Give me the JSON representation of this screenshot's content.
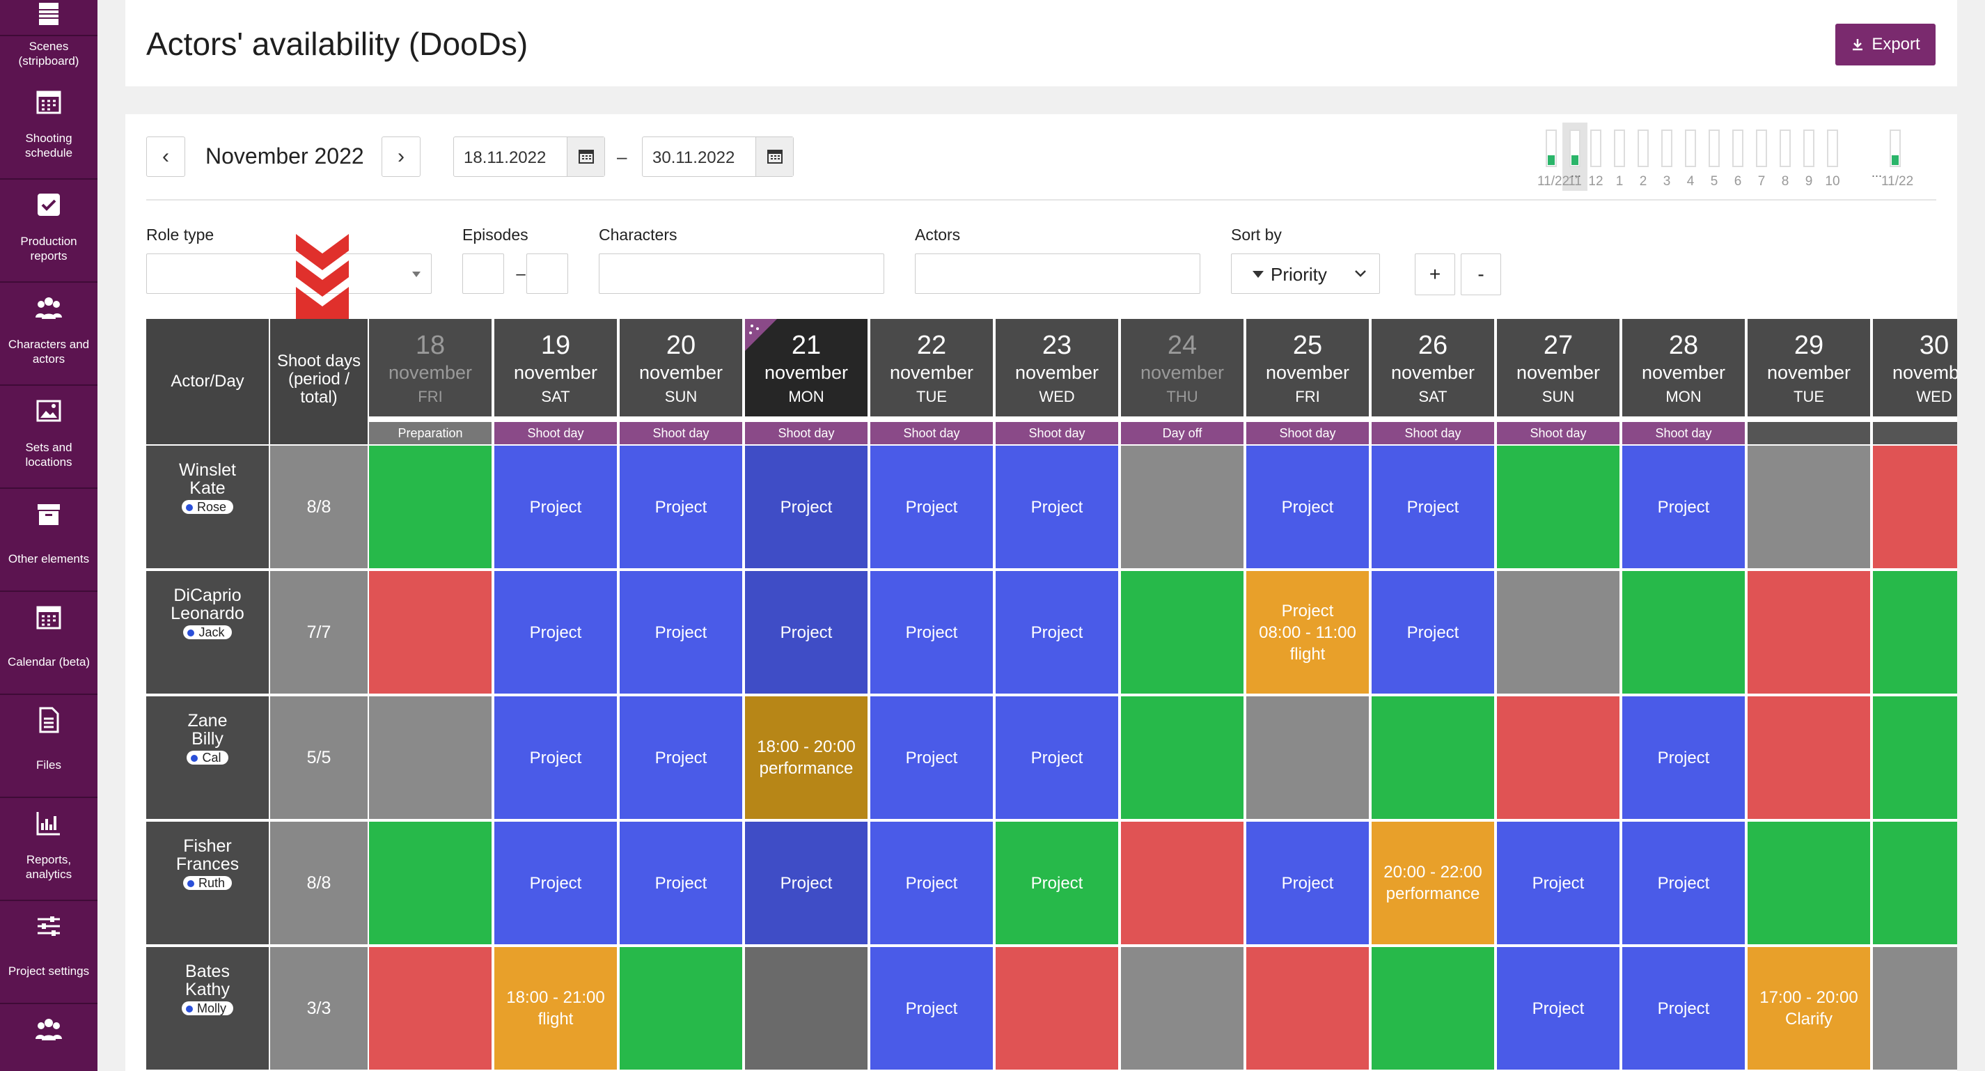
{
  "sidebar": [
    {
      "label": "Scenes\n(stripboard)",
      "icon": "stripboard-icon"
    },
    {
      "label": "Shooting\nschedule",
      "icon": "calendar-icon"
    },
    {
      "label": "Production\nreports",
      "icon": "checkbox-icon"
    },
    {
      "label": "Characters and\nactors",
      "icon": "people-icon"
    },
    {
      "label": "Sets and\nlocations",
      "icon": "image-icon"
    },
    {
      "label": "Other elements",
      "icon": "box-icon"
    },
    {
      "label": "Calendar (beta)",
      "icon": "calendar-icon"
    },
    {
      "label": "Files",
      "icon": "file-icon"
    },
    {
      "label": "Reports,\nanalytics",
      "icon": "chart-icon"
    },
    {
      "label": "Project settings",
      "icon": "sliders-icon"
    },
    {
      "label": "",
      "icon": "people-icon"
    }
  ],
  "page": {
    "title": "Actors' availability (DooDs)",
    "export_label": "Export"
  },
  "nav": {
    "prev": "‹",
    "next": "›",
    "month": "November 2022",
    "date_from": "18.11.2022",
    "date_to": "30.11.2022",
    "dash": "–"
  },
  "minimap": {
    "labels": [
      "11/22",
      "11",
      "12",
      "1",
      "2",
      "3",
      "4",
      "5",
      "6",
      "7",
      "8",
      "9",
      "10",
      "11/22"
    ],
    "active": [
      true,
      true,
      false,
      false,
      false,
      false,
      false,
      false,
      false,
      false,
      false,
      false,
      false,
      true
    ],
    "selected_index": 1,
    "ellipsis": "..."
  },
  "filters": {
    "role_type": "Role type",
    "episodes": "Episodes",
    "episodes_dash": "–",
    "characters": "Characters",
    "actors": "Actors",
    "sort_by": "Sort by",
    "sort_value": "Priority",
    "plus": "+",
    "minus": "-"
  },
  "table": {
    "actor_header": "Actor/Day",
    "shoot_header": "Shoot days\n(period /\ntotal)",
    "days": [
      {
        "num": "18",
        "month": "november",
        "dow": "FRI",
        "type": "Preparation",
        "off": true,
        "current": false
      },
      {
        "num": "19",
        "month": "november",
        "dow": "SAT",
        "type": "Shoot day",
        "off": false,
        "current": false
      },
      {
        "num": "20",
        "month": "november",
        "dow": "SUN",
        "type": "Shoot day",
        "off": false,
        "current": false
      },
      {
        "num": "21",
        "month": "november",
        "dow": "MON",
        "type": "Shoot day",
        "off": false,
        "current": true
      },
      {
        "num": "22",
        "month": "november",
        "dow": "TUE",
        "type": "Shoot day",
        "off": false,
        "current": false
      },
      {
        "num": "23",
        "month": "november",
        "dow": "WED",
        "type": "Shoot day",
        "off": false,
        "current": false
      },
      {
        "num": "24",
        "month": "november",
        "dow": "THU",
        "type": "Day off",
        "off": true,
        "current": false
      },
      {
        "num": "25",
        "month": "november",
        "dow": "FRI",
        "type": "Shoot day",
        "off": false,
        "current": false
      },
      {
        "num": "26",
        "month": "november",
        "dow": "SAT",
        "type": "Shoot day",
        "off": false,
        "current": false
      },
      {
        "num": "27",
        "month": "november",
        "dow": "SUN",
        "type": "Shoot day",
        "off": false,
        "current": false
      },
      {
        "num": "28",
        "month": "november",
        "dow": "MON",
        "type": "Shoot day",
        "off": false,
        "current": false
      },
      {
        "num": "29",
        "month": "november",
        "dow": "TUE",
        "type": "",
        "off": false,
        "current": false
      },
      {
        "num": "30",
        "month": "november",
        "dow": "WED",
        "type": "",
        "off": false,
        "current": false
      }
    ],
    "colors": {
      "P": "#4a5be8",
      "PD": "#3f4dc6",
      "G": "#27b94a",
      "R": "#e05354",
      "Y": "#e8a02a",
      "YD": "#b78617",
      "GR": "#8a8a8a",
      "DG": "#6a6a6a",
      "purple": "#8a4a88",
      "sep": "#555555"
    },
    "actors": [
      {
        "last": "Winslet",
        "first": "Kate",
        "role": "Rose",
        "shoot": "8/8",
        "cells": [
          {
            "c": "G",
            "t": ""
          },
          {
            "c": "P",
            "t": "Project"
          },
          {
            "c": "P",
            "t": "Project"
          },
          {
            "c": "PD",
            "t": "Project"
          },
          {
            "c": "P",
            "t": "Project"
          },
          {
            "c": "P",
            "t": "Project"
          },
          {
            "c": "GR",
            "t": ""
          },
          {
            "c": "P",
            "t": "Project"
          },
          {
            "c": "P",
            "t": "Project"
          },
          {
            "c": "G",
            "t": ""
          },
          {
            "c": "P",
            "t": "Project"
          },
          {
            "c": "GR",
            "t": ""
          },
          {
            "c": "R",
            "t": ""
          }
        ]
      },
      {
        "last": "DiCaprio",
        "first": "Leonardo",
        "role": "Jack",
        "shoot": "7/7",
        "cells": [
          {
            "c": "R",
            "t": ""
          },
          {
            "c": "P",
            "t": "Project"
          },
          {
            "c": "P",
            "t": "Project"
          },
          {
            "c": "PD",
            "t": "Project"
          },
          {
            "c": "P",
            "t": "Project"
          },
          {
            "c": "P",
            "t": "Project"
          },
          {
            "c": "G",
            "t": ""
          },
          {
            "c": "Y",
            "t": "Project\n08:00 - 11:00\nflight"
          },
          {
            "c": "P",
            "t": "Project"
          },
          {
            "c": "GR",
            "t": ""
          },
          {
            "c": "G",
            "t": ""
          },
          {
            "c": "R",
            "t": ""
          },
          {
            "c": "G",
            "t": ""
          }
        ]
      },
      {
        "last": "Zane",
        "first": "Billy",
        "role": "Cal",
        "shoot": "5/5",
        "cells": [
          {
            "c": "GR",
            "t": ""
          },
          {
            "c": "P",
            "t": "Project"
          },
          {
            "c": "P",
            "t": "Project"
          },
          {
            "c": "YD",
            "t": "18:00 - 20:00\nperformance"
          },
          {
            "c": "P",
            "t": "Project"
          },
          {
            "c": "P",
            "t": "Project"
          },
          {
            "c": "G",
            "t": ""
          },
          {
            "c": "GR",
            "t": ""
          },
          {
            "c": "G",
            "t": ""
          },
          {
            "c": "R",
            "t": ""
          },
          {
            "c": "P",
            "t": "Project"
          },
          {
            "c": "R",
            "t": ""
          },
          {
            "c": "G",
            "t": ""
          }
        ]
      },
      {
        "last": "Fisher",
        "first": "Frances",
        "role": "Ruth",
        "shoot": "8/8",
        "cells": [
          {
            "c": "G",
            "t": ""
          },
          {
            "c": "P",
            "t": "Project"
          },
          {
            "c": "P",
            "t": "Project"
          },
          {
            "c": "PD",
            "t": "Project"
          },
          {
            "c": "P",
            "t": "Project"
          },
          {
            "c": "G",
            "t": "Project"
          },
          {
            "c": "R",
            "t": ""
          },
          {
            "c": "P",
            "t": "Project"
          },
          {
            "c": "Y",
            "t": "20:00 - 22:00\nperformance"
          },
          {
            "c": "P",
            "t": "Project"
          },
          {
            "c": "P",
            "t": "Project"
          },
          {
            "c": "G",
            "t": ""
          },
          {
            "c": "G",
            "t": ""
          }
        ]
      },
      {
        "last": "Bates",
        "first": "Kathy",
        "role": "Molly",
        "shoot": "3/3",
        "cells": [
          {
            "c": "R",
            "t": ""
          },
          {
            "c": "Y",
            "t": "18:00 - 21:00\nflight"
          },
          {
            "c": "G",
            "t": ""
          },
          {
            "c": "DG",
            "t": ""
          },
          {
            "c": "P",
            "t": "Project"
          },
          {
            "c": "R",
            "t": ""
          },
          {
            "c": "GR",
            "t": ""
          },
          {
            "c": "R",
            "t": ""
          },
          {
            "c": "G",
            "t": ""
          },
          {
            "c": "P",
            "t": "Project"
          },
          {
            "c": "P",
            "t": "Project"
          },
          {
            "c": "Y",
            "t": "17:00 - 20:00\nClarify"
          },
          {
            "c": "GR",
            "t": ""
          }
        ]
      }
    ]
  }
}
